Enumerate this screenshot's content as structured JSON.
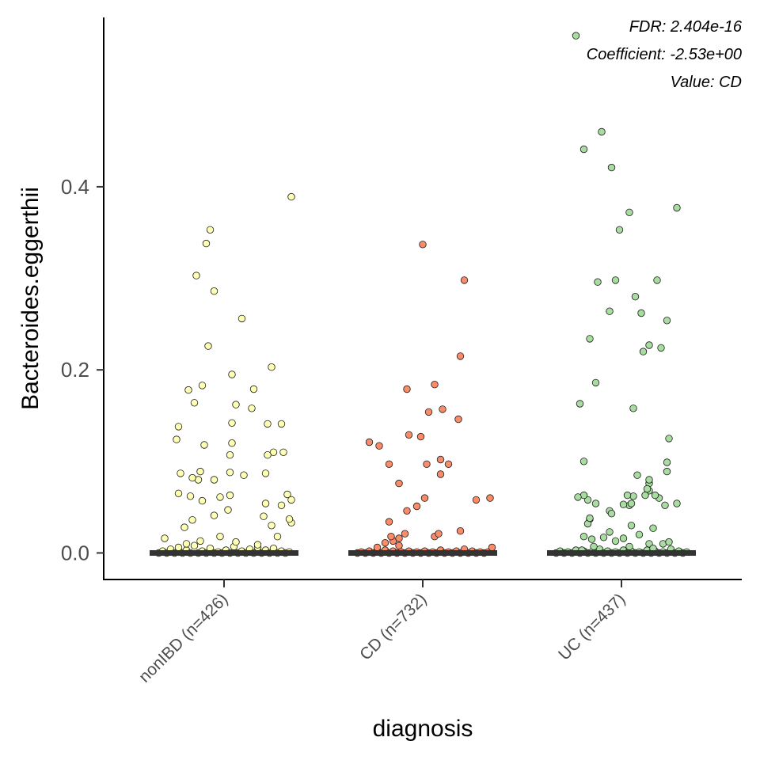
{
  "chart_data": {
    "type": "scatter",
    "xlabel": "diagnosis",
    "ylabel": "Bacteroides.eggerthii",
    "ylim": [
      -0.029,
      0.585
    ],
    "yticks": [
      0.0,
      0.2,
      0.4
    ],
    "ytick_labels": [
      "0.0",
      "0.2",
      "0.4"
    ],
    "categories": [
      "nonIBD (n=426)",
      "CD (n=732)",
      "UC (n=437)"
    ],
    "annotations": [
      "FDR: 2.404e-16",
      "Coefficient: -2.53e+00",
      "Value: CD"
    ],
    "grid": false,
    "legend": "none",
    "colors": {
      "nonIBD (n=426)": "#ffffb3",
      "CD (n=732)": "#fb8c6a",
      "UC (n=437)": "#a8dca0",
      "median_bar": "#333333"
    },
    "median": [
      0.0,
      0.0,
      0.0
    ],
    "series": [
      {
        "category": "nonIBD (n=426)",
        "points": [
          [
            -0.33,
            0.0
          ],
          [
            -0.31,
            0.002
          ],
          [
            -0.29,
            0.0
          ],
          [
            -0.27,
            0.004
          ],
          [
            -0.25,
            0.0
          ],
          [
            -0.23,
            0.006
          ],
          [
            -0.21,
            0.0
          ],
          [
            -0.19,
            0.003
          ],
          [
            -0.17,
            0.0
          ],
          [
            -0.15,
            0.008
          ],
          [
            -0.13,
            0.0
          ],
          [
            -0.11,
            0.002
          ],
          [
            -0.09,
            0.0
          ],
          [
            -0.07,
            0.005
          ],
          [
            -0.05,
            0.0
          ],
          [
            -0.03,
            0.001
          ],
          [
            -0.01,
            0.0
          ],
          [
            0.01,
            0.003
          ],
          [
            0.03,
            0.0
          ],
          [
            0.05,
            0.007
          ],
          [
            0.07,
            0.0
          ],
          [
            0.09,
            0.002
          ],
          [
            0.11,
            0.0
          ],
          [
            0.13,
            0.004
          ],
          [
            0.15,
            0.0
          ],
          [
            0.17,
            0.006
          ],
          [
            0.19,
            0.0
          ],
          [
            0.21,
            0.003
          ],
          [
            0.23,
            0.0
          ],
          [
            0.25,
            0.005
          ],
          [
            0.27,
            0.0
          ],
          [
            0.29,
            0.002
          ],
          [
            0.31,
            0.0
          ],
          [
            0.33,
            0.001
          ],
          [
            -0.19,
            0.01
          ],
          [
            -0.12,
            0.013
          ],
          [
            0.06,
            0.012
          ],
          [
            0.17,
            0.009
          ],
          [
            -0.3,
            0.016
          ],
          [
            -0.02,
            0.018
          ],
          [
            0.27,
            0.018
          ],
          [
            -0.2,
            0.028
          ],
          [
            0.24,
            0.03
          ],
          [
            -0.16,
            0.036
          ],
          [
            -0.05,
            0.041
          ],
          [
            0.2,
            0.04
          ],
          [
            0.34,
            0.033
          ],
          [
            0.33,
            0.037
          ],
          [
            0.02,
            0.047
          ],
          [
            0.29,
            0.052
          ],
          [
            0.21,
            0.054
          ],
          [
            -0.11,
            0.057
          ],
          [
            -0.17,
            0.062
          ],
          [
            -0.02,
            0.061
          ],
          [
            0.34,
            0.058
          ],
          [
            0.32,
            0.064
          ],
          [
            -0.23,
            0.065
          ],
          [
            0.03,
            0.063
          ],
          [
            -0.13,
            0.08
          ],
          [
            -0.05,
            0.08
          ],
          [
            -0.16,
            0.082
          ],
          [
            -0.22,
            0.087
          ],
          [
            0.1,
            0.085
          ],
          [
            0.21,
            0.087
          ],
          [
            -0.12,
            0.089
          ],
          [
            0.03,
            0.088
          ],
          [
            0.25,
            0.11
          ],
          [
            0.22,
            0.107
          ],
          [
            0.03,
            0.107
          ],
          [
            0.3,
            0.11
          ],
          [
            0.04,
            0.12
          ],
          [
            -0.1,
            0.118
          ],
          [
            -0.24,
            0.124
          ],
          [
            -0.23,
            0.138
          ],
          [
            0.22,
            0.141
          ],
          [
            0.29,
            0.141
          ],
          [
            0.04,
            0.142
          ],
          [
            0.14,
            0.158
          ],
          [
            0.06,
            0.162
          ],
          [
            -0.15,
            0.164
          ],
          [
            -0.18,
            0.178
          ],
          [
            -0.11,
            0.183
          ],
          [
            0.15,
            0.179
          ],
          [
            0.04,
            0.195
          ],
          [
            0.24,
            0.203
          ],
          [
            -0.08,
            0.226
          ],
          [
            0.09,
            0.256
          ],
          [
            -0.05,
            0.286
          ],
          [
            -0.14,
            0.303
          ],
          [
            -0.09,
            0.338
          ],
          [
            -0.07,
            0.353
          ],
          [
            0.34,
            0.389
          ]
        ]
      },
      {
        "category": "CD (n=732)",
        "points": [
          [
            -0.33,
            0.0
          ],
          [
            -0.31,
            0.001
          ],
          [
            -0.29,
            0.0
          ],
          [
            -0.27,
            0.002
          ],
          [
            -0.25,
            0.0
          ],
          [
            -0.23,
            0.001
          ],
          [
            -0.21,
            0.0
          ],
          [
            -0.19,
            0.003
          ],
          [
            -0.17,
            0.0
          ],
          [
            -0.15,
            0.002
          ],
          [
            -0.13,
            0.0
          ],
          [
            -0.11,
            0.001
          ],
          [
            -0.09,
            0.0
          ],
          [
            -0.07,
            0.002
          ],
          [
            -0.05,
            0.0
          ],
          [
            -0.03,
            0.001
          ],
          [
            -0.01,
            0.0
          ],
          [
            0.01,
            0.002
          ],
          [
            0.03,
            0.0
          ],
          [
            0.05,
            0.001
          ],
          [
            0.07,
            0.0
          ],
          [
            0.09,
            0.003
          ],
          [
            0.11,
            0.0
          ],
          [
            0.13,
            0.001
          ],
          [
            0.15,
            0.0
          ],
          [
            0.17,
            0.002
          ],
          [
            0.19,
            0.0
          ],
          [
            0.21,
            0.001
          ],
          [
            0.23,
            0.0
          ],
          [
            0.25,
            0.002
          ],
          [
            0.27,
            0.0
          ],
          [
            0.29,
            0.001
          ],
          [
            0.31,
            0.0
          ],
          [
            0.33,
            0.001
          ],
          [
            -0.23,
            0.006
          ],
          [
            -0.12,
            0.008
          ],
          [
            -0.19,
            0.011
          ],
          [
            0.35,
            0.006
          ],
          [
            0.21,
            0.004
          ],
          [
            -0.15,
            0.013
          ],
          [
            -0.16,
            0.018
          ],
          [
            -0.12,
            0.016
          ],
          [
            -0.09,
            0.021
          ],
          [
            0.06,
            0.018
          ],
          [
            0.19,
            0.024
          ],
          [
            0.08,
            0.021
          ],
          [
            -0.17,
            0.034
          ],
          [
            -0.08,
            0.046
          ],
          [
            -0.03,
            0.051
          ],
          [
            0.27,
            0.058
          ],
          [
            0.01,
            0.06
          ],
          [
            0.34,
            0.06
          ],
          [
            -0.12,
            0.076
          ],
          [
            0.09,
            0.086
          ],
          [
            0.02,
            0.097
          ],
          [
            -0.17,
            0.097
          ],
          [
            0.13,
            0.097
          ],
          [
            0.09,
            0.102
          ],
          [
            -0.22,
            0.117
          ],
          [
            -0.27,
            0.121
          ],
          [
            -0.01,
            0.127
          ],
          [
            -0.07,
            0.129
          ],
          [
            0.03,
            0.154
          ],
          [
            0.18,
            0.146
          ],
          [
            0.1,
            0.157
          ],
          [
            -0.08,
            0.179
          ],
          [
            0.06,
            0.184
          ],
          [
            0.19,
            0.215
          ],
          [
            0.21,
            0.298
          ],
          [
            0.0,
            0.337
          ]
        ]
      },
      {
        "category": "UC (n=437)",
        "points": [
          [
            -0.33,
            0.0
          ],
          [
            -0.31,
            0.002
          ],
          [
            -0.29,
            0.0
          ],
          [
            -0.27,
            0.001
          ],
          [
            -0.25,
            0.0
          ],
          [
            -0.23,
            0.003
          ],
          [
            -0.21,
            0.0
          ],
          [
            -0.19,
            0.002
          ],
          [
            -0.17,
            0.0
          ],
          [
            -0.15,
            0.001
          ],
          [
            -0.13,
            0.0
          ],
          [
            -0.11,
            0.004
          ],
          [
            -0.09,
            0.0
          ],
          [
            -0.07,
            0.002
          ],
          [
            -0.05,
            0.0
          ],
          [
            -0.03,
            0.001
          ],
          [
            -0.01,
            0.0
          ],
          [
            0.01,
            0.003
          ],
          [
            0.03,
            0.0
          ],
          [
            0.05,
            0.002
          ],
          [
            0.07,
            0.0
          ],
          [
            0.09,
            0.001
          ],
          [
            0.11,
            0.0
          ],
          [
            0.13,
            0.003
          ],
          [
            0.15,
            0.0
          ],
          [
            0.17,
            0.002
          ],
          [
            0.19,
            0.0
          ],
          [
            0.21,
            0.001
          ],
          [
            0.23,
            0.0
          ],
          [
            0.25,
            0.004
          ],
          [
            0.27,
            0.0
          ],
          [
            0.29,
            0.002
          ],
          [
            0.31,
            0.0
          ],
          [
            0.33,
            0.001
          ],
          [
            -0.2,
            0.003
          ],
          [
            -0.14,
            0.007
          ],
          [
            0.04,
            0.007
          ],
          [
            0.21,
            0.01
          ],
          [
            0.14,
            0.01
          ],
          [
            0.16,
            0.005
          ],
          [
            0.24,
            0.012
          ],
          [
            -0.19,
            0.018
          ],
          [
            -0.09,
            0.017
          ],
          [
            -0.15,
            0.015
          ],
          [
            -0.03,
            0.013
          ],
          [
            0.01,
            0.016
          ],
          [
            0.16,
            0.027
          ],
          [
            0.09,
            0.02
          ],
          [
            0.05,
            0.03
          ],
          [
            -0.06,
            0.023
          ],
          [
            -0.16,
            0.037
          ],
          [
            -0.17,
            0.032
          ],
          [
            -0.16,
            0.038
          ],
          [
            -0.06,
            0.046
          ],
          [
            0.04,
            0.052
          ],
          [
            0.22,
            0.052
          ],
          [
            -0.05,
            0.043
          ],
          [
            0.28,
            0.054
          ],
          [
            -0.13,
            0.054
          ],
          [
            0.01,
            0.053
          ],
          [
            0.05,
            0.054
          ],
          [
            -0.17,
            0.058
          ],
          [
            0.19,
            0.06
          ],
          [
            -0.19,
            0.063
          ],
          [
            0.06,
            0.062
          ],
          [
            0.17,
            0.063
          ],
          [
            0.14,
            0.068
          ],
          [
            0.03,
            0.063
          ],
          [
            0.12,
            0.063
          ],
          [
            -0.22,
            0.061
          ],
          [
            0.14,
            0.076
          ],
          [
            0.13,
            0.07
          ],
          [
            0.14,
            0.08
          ],
          [
            0.08,
            0.085
          ],
          [
            0.23,
            0.089
          ],
          [
            -0.19,
            0.1
          ],
          [
            0.23,
            0.099
          ],
          [
            0.24,
            0.125
          ],
          [
            0.06,
            0.158
          ],
          [
            -0.13,
            0.186
          ],
          [
            -0.21,
            0.163
          ],
          [
            0.11,
            0.22
          ],
          [
            0.2,
            0.224
          ],
          [
            0.14,
            0.227
          ],
          [
            0.1,
            0.262
          ],
          [
            -0.06,
            0.264
          ],
          [
            0.07,
            0.28
          ],
          [
            0.23,
            0.254
          ],
          [
            -0.16,
            0.234
          ],
          [
            -0.12,
            0.296
          ],
          [
            -0.03,
            0.298
          ],
          [
            0.18,
            0.298
          ],
          [
            0.04,
            0.372
          ],
          [
            0.28,
            0.377
          ],
          [
            -0.01,
            0.353
          ],
          [
            -0.19,
            0.441
          ],
          [
            -0.05,
            0.421
          ],
          [
            -0.1,
            0.46
          ],
          [
            -0.23,
            0.565
          ]
        ]
      }
    ]
  }
}
